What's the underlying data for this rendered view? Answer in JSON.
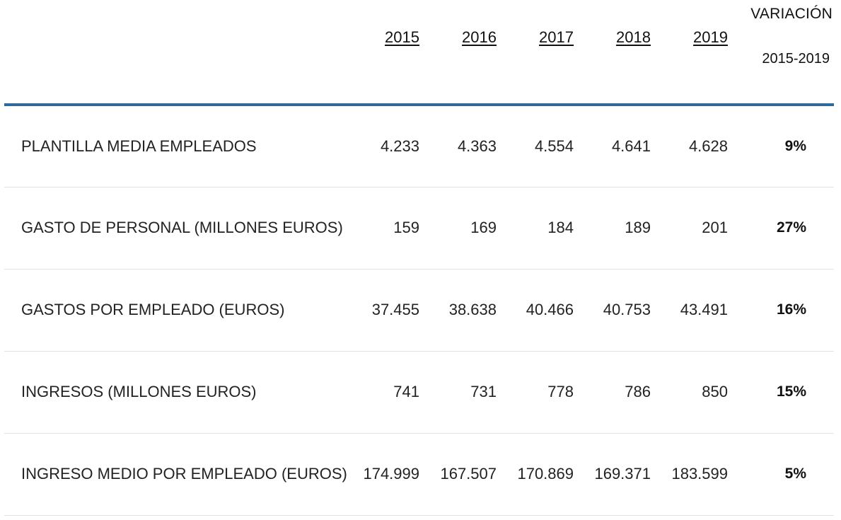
{
  "table": {
    "header": {
      "label": "",
      "years": [
        "2015",
        "2016",
        "2017",
        "2018",
        "2019"
      ],
      "variation_line1": "VARIACIÓN",
      "variation_line2": "2015-2019"
    },
    "rows": [
      {
        "label": "PLANTILLA MEDIA EMPLEADOS",
        "values": [
          "4.233",
          "4.363",
          "4.554",
          "4.641",
          "4.628"
        ],
        "variation": "9%"
      },
      {
        "label": "GASTO DE PERSONAL (MILLONES EUROS)",
        "values": [
          "159",
          "169",
          "184",
          "189",
          "201"
        ],
        "variation": "27%"
      },
      {
        "label": "GASTOS POR EMPLEADO (EUROS)",
        "values": [
          "37.455",
          "38.638",
          "40.466",
          "40.753",
          "43.491"
        ],
        "variation": "16%"
      },
      {
        "label": "INGRESOS (MILLONES EUROS)",
        "values": [
          "741",
          "731",
          "778",
          "786",
          "850"
        ],
        "variation": "15%"
      },
      {
        "label": "INGRESO MEDIO POR EMPLEADO (EUROS)",
        "values": [
          "174.999",
          "167.507",
          "170.869",
          "169.371",
          "183.599"
        ],
        "variation": "5%"
      }
    ]
  },
  "colors": {
    "header_rule": "#2f6a9a",
    "row_divider": "#e2e2e2",
    "text": "#222222"
  }
}
